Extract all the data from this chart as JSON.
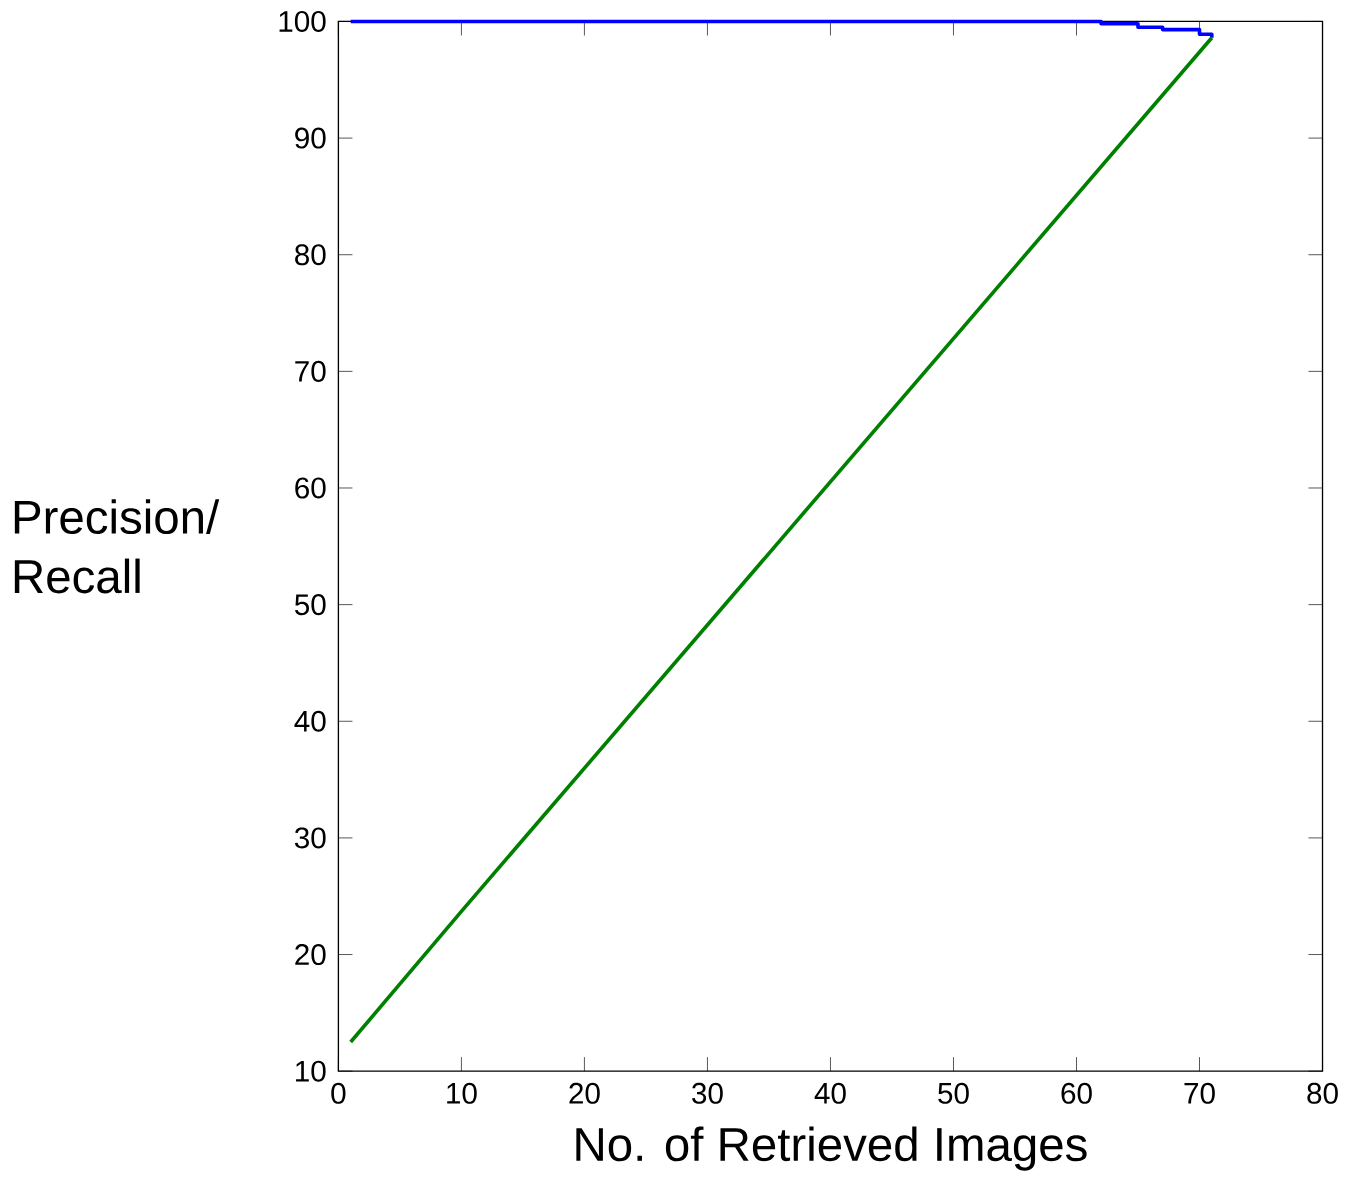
{
  "chart_data": {
    "type": "line",
    "xlabel": "No. of Retrieved Images",
    "ylabel": "Precision/ Recall",
    "xlim": [
      0,
      80
    ],
    "ylim": [
      10,
      100
    ],
    "xticks": [
      0,
      10,
      20,
      30,
      40,
      50,
      60,
      70,
      80
    ],
    "yticks": [
      10,
      20,
      30,
      40,
      50,
      60,
      70,
      80,
      90,
      100
    ],
    "grid": false,
    "marker": "none",
    "line_style": "solid",
    "series": [
      {
        "color": "#0000ff",
        "x": [
          1,
          62,
          62,
          65,
          65,
          67,
          67,
          70,
          70,
          71,
          71
        ],
        "values": [
          100,
          100,
          99.8,
          99.8,
          99.5,
          99.5,
          99.3,
          99.3,
          98.9,
          98.9,
          98.6
        ]
      },
      {
        "color": "#008000",
        "x": [
          1,
          10,
          71
        ],
        "values": [
          12.5,
          23.7,
          98.6
        ]
      }
    ]
  }
}
